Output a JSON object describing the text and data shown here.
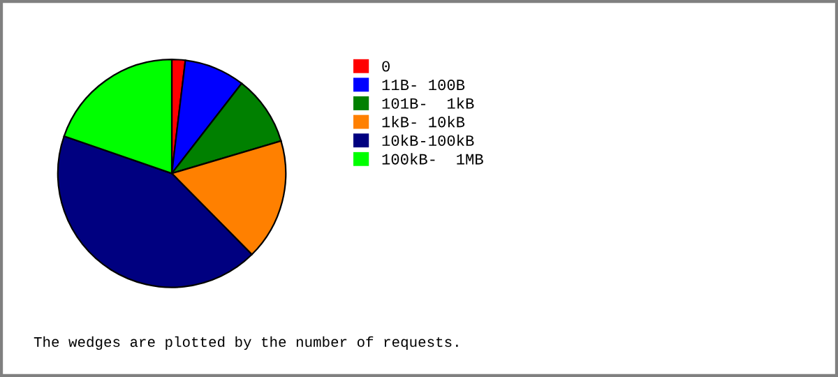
{
  "chart_data": {
    "type": "pie",
    "categories": [
      "0",
      "11B- 100B",
      "101B-  1kB",
      "1kB- 10kB",
      "10kB-100kB",
      "100kB-  1MB"
    ],
    "values": [
      1.9,
      8.6,
      9.9,
      17.2,
      42.7,
      19.7
    ],
    "colors": [
      "#ff0000",
      "#0000ff",
      "#008000",
      "#ff8000",
      "#000080",
      "#00ff00"
    ],
    "legend": "right",
    "annotations": [
      "The wedges are plotted by the number of requests."
    ]
  }
}
